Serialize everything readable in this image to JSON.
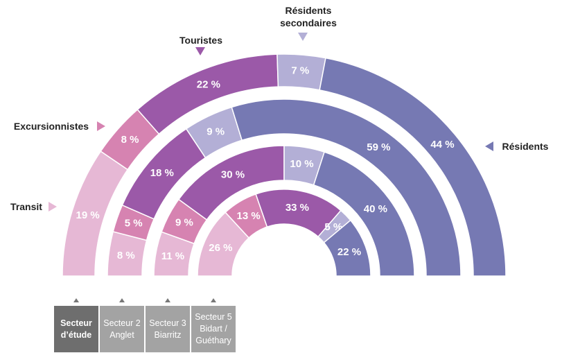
{
  "chart_data": {
    "type": "half-donut",
    "categories": [
      "Transit",
      "Excursionnistes",
      "Touristes",
      "Résidents secondaires",
      "Résidents"
    ],
    "colors": [
      "#e6b8d5",
      "#d683b1",
      "#9b59a8",
      "#b3afd6",
      "#7679b3"
    ],
    "series": [
      {
        "name": "Secteur d’étude",
        "values": [
          19,
          8,
          22,
          7,
          44
        ],
        "value_labels": [
          "19 %",
          "8 %",
          "22 %",
          "7 %",
          "44 %"
        ]
      },
      {
        "name": "Secteur 2 Anglet",
        "values": [
          8,
          5,
          18,
          9,
          59
        ],
        "value_labels": [
          "8 %",
          "5 %",
          "18 %",
          "9 %",
          "59 %"
        ]
      },
      {
        "name": "Secteur 3 Biarritz",
        "values": [
          11,
          9,
          30,
          10,
          40
        ],
        "value_labels": [
          "11 %",
          "9 %",
          "30 %",
          "10 %",
          "40 %"
        ]
      },
      {
        "name": "Secteur 5 Bidart / Guéthary",
        "values": [
          26,
          13,
          33,
          5,
          22
        ],
        "value_labels": [
          "26 %",
          "13 %",
          "33 %",
          "5 %",
          "22 %"
        ]
      }
    ]
  }
}
